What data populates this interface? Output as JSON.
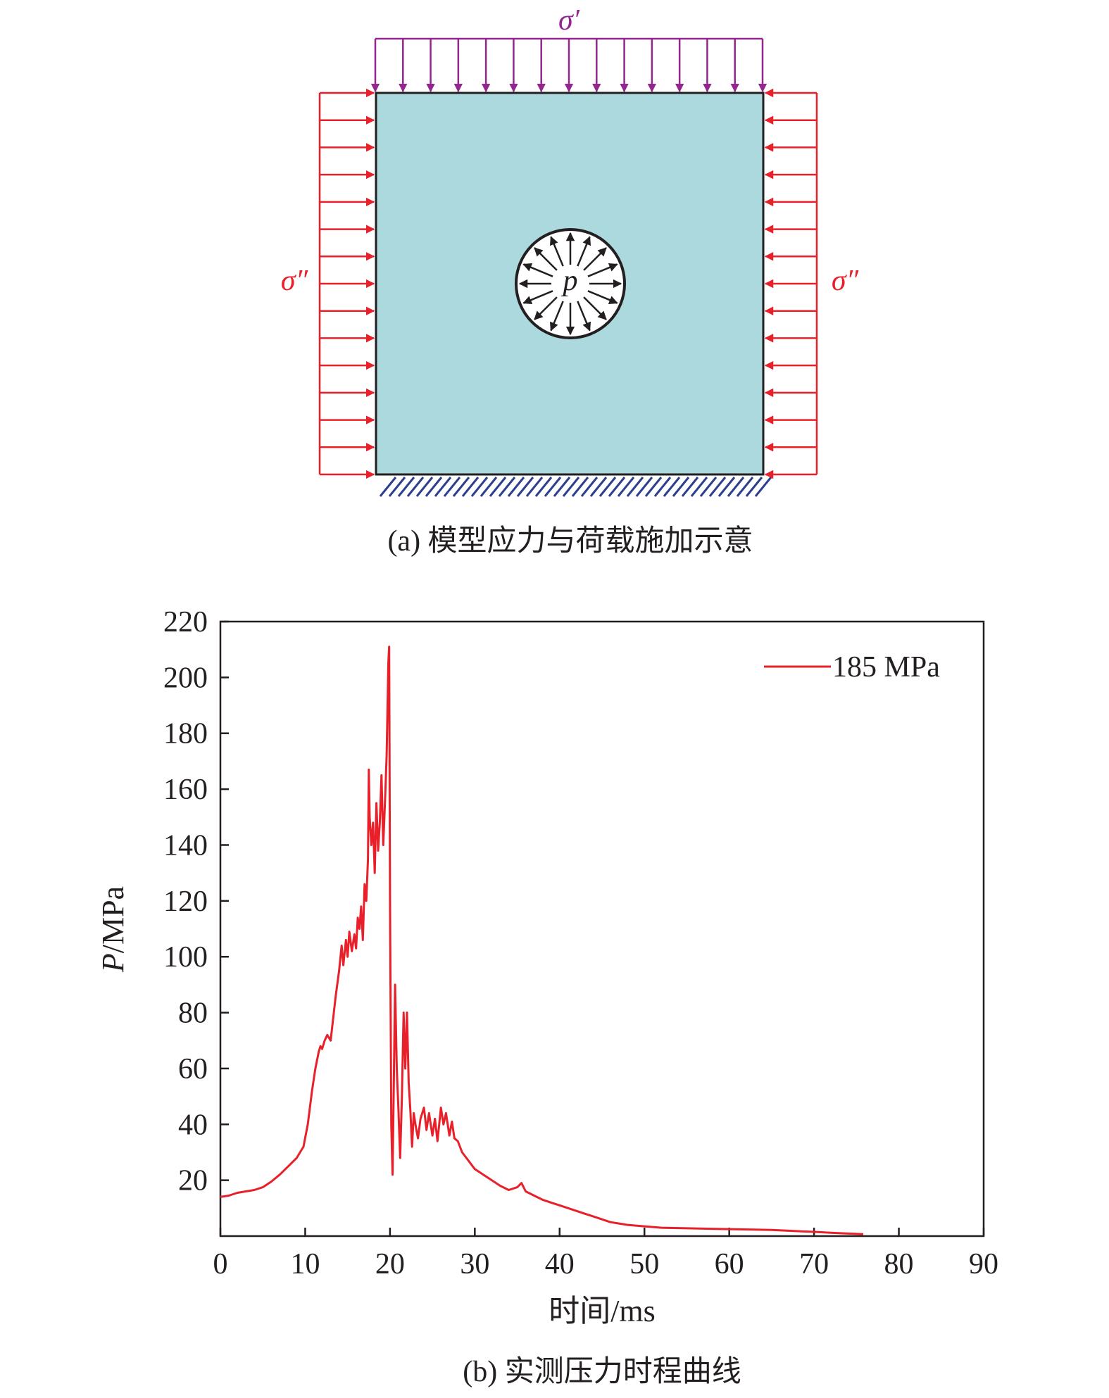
{
  "panel_a": {
    "caption": "(a) 模型应力与荷载施加示意",
    "sigma_top": "σ′",
    "sigma_left": "σ″",
    "sigma_right": "σ″",
    "pressure_symbol": "p",
    "colors": {
      "block_fill": "#acd9de",
      "top_load": "#93278f",
      "side_load": "#e8202a",
      "base_hatch": "#2e3f8f",
      "outline": "#231f20"
    }
  },
  "panel_b": {
    "caption": "(b) 实测压力时程曲线",
    "chart_data": {
      "type": "line",
      "title": "",
      "xlabel": "时间/ms",
      "ylabel_italic": "P",
      "ylabel_rest": "/MPa",
      "xlim": [
        0,
        90
      ],
      "ylim": [
        0,
        220
      ],
      "x_ticks": [
        "0",
        "10",
        "20",
        "30",
        "40",
        "50",
        "60",
        "70",
        "80",
        "90"
      ],
      "y_ticks": [
        "20",
        "40",
        "60",
        "80",
        "100",
        "120",
        "140",
        "160",
        "180",
        "200",
        "220"
      ],
      "grid": false,
      "legend_position": "top-right",
      "series": [
        {
          "name": "185 MPa",
          "color": "#e8202a",
          "x": [
            0,
            1,
            2,
            3,
            4,
            5,
            6,
            7,
            8,
            9,
            9.8,
            10.3,
            10.8,
            11.2,
            11.6,
            11.8,
            12.0,
            12.3,
            12.6,
            13.0,
            13.3,
            13.6,
            14.0,
            14.3,
            14.5,
            14.8,
            15.0,
            15.2,
            15.5,
            15.8,
            16.0,
            16.2,
            16.4,
            16.6,
            16.8,
            17.0,
            17.2,
            17.4,
            17.5,
            17.6,
            17.8,
            18.0,
            18.2,
            18.4,
            18.6,
            18.8,
            19.0,
            19.2,
            19.4,
            19.6,
            19.8,
            19.9,
            20.0,
            20.15,
            20.3,
            20.45,
            20.6,
            20.8,
            21.0,
            21.2,
            21.4,
            21.6,
            21.8,
            22.0,
            22.2,
            22.4,
            22.6,
            22.8,
            23.0,
            23.3,
            23.6,
            24.0,
            24.3,
            24.6,
            25.0,
            25.3,
            25.6,
            26.0,
            26.3,
            26.6,
            27.0,
            27.3,
            27.6,
            28.0,
            28.5,
            29.0,
            29.5,
            30.0,
            31.0,
            32.0,
            33.0,
            34.0,
            35.0,
            35.5,
            36.0,
            37.0,
            38.0,
            39.0,
            40.0,
            41.0,
            42.0,
            43.0,
            44.0,
            45.0,
            46.0,
            47.0,
            48.0,
            50.0,
            52.0,
            55.0,
            60.0,
            65.0,
            70.0,
            72.0,
            74.0,
            75.8
          ],
          "y": [
            14,
            14.5,
            15.5,
            16,
            16.5,
            17.5,
            19.5,
            22,
            25,
            28,
            32,
            40,
            52,
            60,
            66,
            68,
            67,
            70,
            72,
            70,
            78,
            86,
            95,
            104,
            97,
            106,
            100,
            109,
            102,
            108,
            103,
            114,
            110,
            118,
            106,
            126,
            120,
            135,
            167,
            150,
            140,
            148,
            130,
            155,
            138,
            148,
            165,
            140,
            155,
            172,
            205,
            211,
            120,
            40,
            22,
            55,
            90,
            60,
            45,
            28,
            50,
            80,
            60,
            80,
            55,
            45,
            32,
            44,
            40,
            35,
            42,
            46,
            38,
            44,
            36,
            42,
            34,
            46,
            40,
            44,
            36,
            41,
            35,
            34,
            30,
            28,
            26,
            24,
            22,
            20,
            18,
            16.5,
            17.5,
            19,
            16,
            14.5,
            13,
            12,
            11,
            10,
            9,
            8,
            7,
            6,
            5,
            4.5,
            4,
            3.5,
            3,
            2.8,
            2.5,
            2.2,
            1.5,
            1.2,
            0.9,
            0.7
          ]
        }
      ]
    }
  }
}
